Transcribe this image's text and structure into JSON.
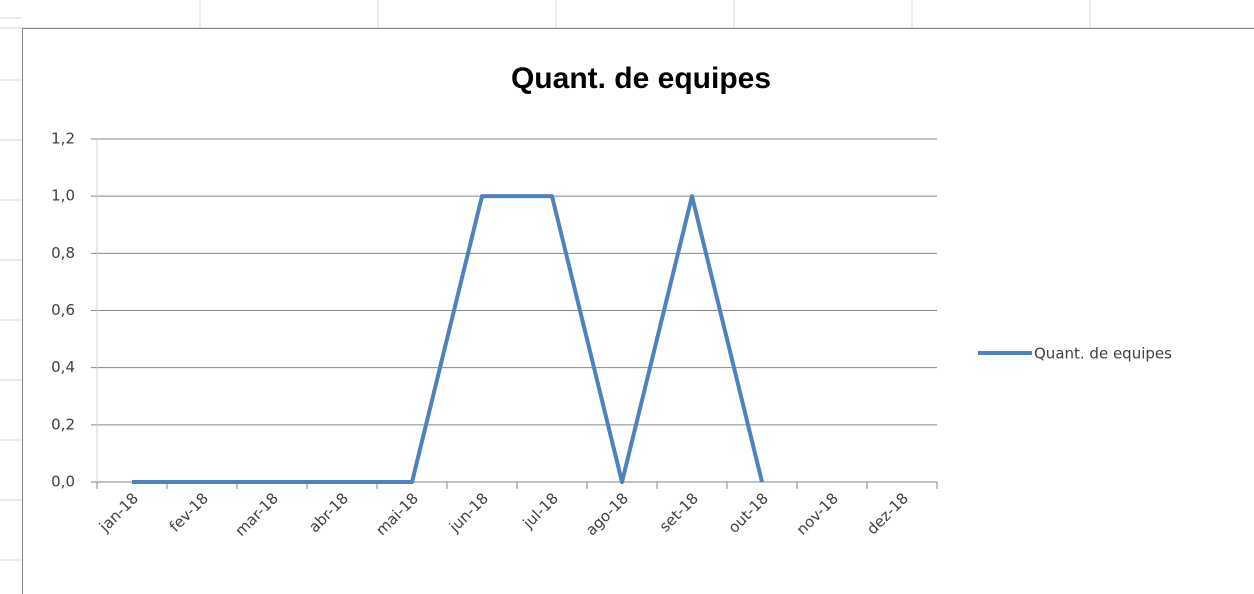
{
  "chart_data": {
    "type": "line",
    "title": "Quant. de equipes",
    "categories": [
      "jan-18",
      "fev-18",
      "mar-18",
      "abr-18",
      "mai-18",
      "jun-18",
      "jul-18",
      "ago-18",
      "set-18",
      "out-18",
      "nov-18",
      "dez-18"
    ],
    "series": [
      {
        "name": "Quant. de equipes",
        "color": "#4f81bd",
        "values": [
          0,
          0,
          0,
          0,
          0,
          1,
          1,
          0,
          1,
          0,
          null,
          null
        ]
      }
    ],
    "ylim": [
      0,
      1.2
    ],
    "yticks": [
      {
        "value": 0,
        "label": "0,0"
      },
      {
        "value": 0.2,
        "label": "0,2"
      },
      {
        "value": 0.4,
        "label": "0,4"
      },
      {
        "value": 0.6,
        "label": "0,6"
      },
      {
        "value": 0.8,
        "label": "0,8"
      },
      {
        "value": 1,
        "label": "1,0"
      },
      {
        "value": 1.2,
        "label": "1,2"
      }
    ],
    "grid": true,
    "legend": "right"
  }
}
